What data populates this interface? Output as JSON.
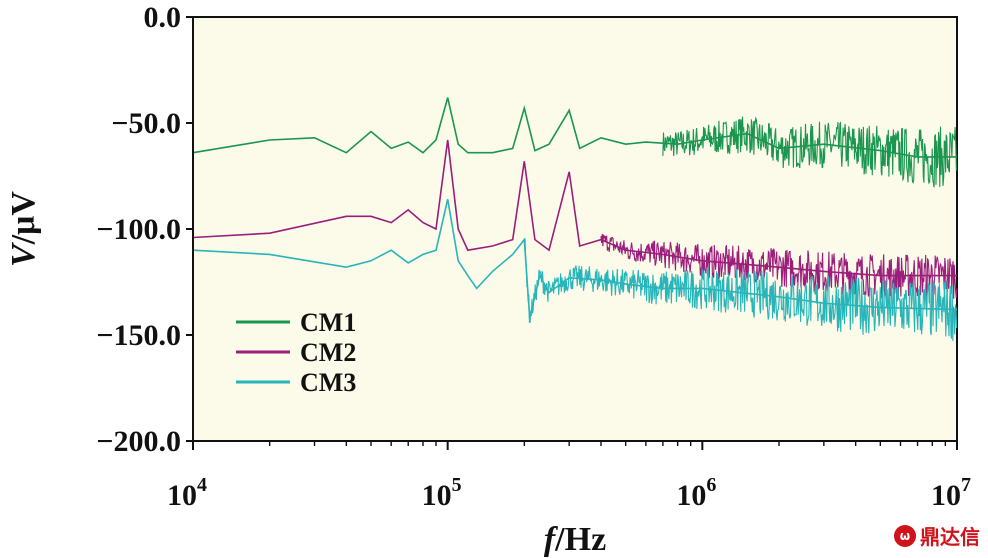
{
  "chart_data": {
    "type": "line",
    "xlabel_italic": "f",
    "xlabel_unit": "/Hz",
    "ylabel_italic": "V",
    "ylabel_unit": "/μV",
    "xscale": "log",
    "xlim": [
      10000,
      10000000
    ],
    "ylim": [
      -200,
      0
    ],
    "yticks": [
      {
        "value": 0,
        "label": "0.0"
      },
      {
        "value": -50,
        "label": "−50.0"
      },
      {
        "value": -100,
        "label": "−100.0"
      },
      {
        "value": -150,
        "label": "−150.0"
      },
      {
        "value": -200,
        "label": "−200.0"
      }
    ],
    "xticks": [
      {
        "value": 10000,
        "base": "10",
        "exp": "4"
      },
      {
        "value": 100000,
        "base": "10",
        "exp": "5"
      },
      {
        "value": 1000000,
        "base": "10",
        "exp": "6"
      },
      {
        "value": 10000000,
        "base": "10",
        "exp": "7"
      }
    ],
    "grid": false,
    "legend_position": "lower-left",
    "background": "#fcfae9",
    "series": [
      {
        "name": "CM1",
        "color": "#1a9650",
        "points": [
          [
            10000,
            -64
          ],
          [
            20000,
            -58
          ],
          [
            30000,
            -57
          ],
          [
            40000,
            -64
          ],
          [
            50000,
            -54
          ],
          [
            60000,
            -62
          ],
          [
            70000,
            -59
          ],
          [
            80000,
            -64
          ],
          [
            90000,
            -58
          ],
          [
            100000,
            -38
          ],
          [
            110000,
            -60
          ],
          [
            120000,
            -64
          ],
          [
            150000,
            -64
          ],
          [
            180000,
            -62
          ],
          [
            200000,
            -43
          ],
          [
            220000,
            -63
          ],
          [
            250000,
            -60
          ],
          [
            300000,
            -44
          ],
          [
            330000,
            -62
          ],
          [
            400000,
            -57
          ],
          [
            500000,
            -60
          ],
          [
            600000,
            -59
          ],
          [
            800000,
            -60
          ],
          [
            1000000,
            -58
          ],
          [
            1500000,
            -55
          ],
          [
            2000000,
            -62
          ],
          [
            3000000,
            -60
          ],
          [
            5000000,
            -63
          ],
          [
            7000000,
            -66
          ],
          [
            10000000,
            -66
          ]
        ],
        "noise": [
          [
            700000,
            12
          ],
          [
            1500000,
            18
          ],
          [
            3000000,
            22
          ],
          [
            10000000,
            30
          ]
        ]
      },
      {
        "name": "CM2",
        "color": "#9b1e7c",
        "points": [
          [
            10000,
            -104
          ],
          [
            20000,
            -102
          ],
          [
            40000,
            -94
          ],
          [
            50000,
            -94
          ],
          [
            60000,
            -97
          ],
          [
            70000,
            -91
          ],
          [
            80000,
            -97
          ],
          [
            90000,
            -100
          ],
          [
            100000,
            -58
          ],
          [
            110000,
            -100
          ],
          [
            120000,
            -110
          ],
          [
            150000,
            -108
          ],
          [
            180000,
            -105
          ],
          [
            200000,
            -68
          ],
          [
            220000,
            -105
          ],
          [
            250000,
            -110
          ],
          [
            300000,
            -73
          ],
          [
            330000,
            -108
          ],
          [
            400000,
            -105
          ],
          [
            500000,
            -110
          ],
          [
            700000,
            -112
          ],
          [
            1000000,
            -115
          ],
          [
            2000000,
            -118
          ],
          [
            3000000,
            -120
          ],
          [
            5000000,
            -122
          ],
          [
            10000000,
            -122
          ]
        ],
        "noise": [
          [
            400000,
            8
          ],
          [
            1000000,
            16
          ],
          [
            3000000,
            20
          ],
          [
            10000000,
            22
          ]
        ]
      },
      {
        "name": "CM3",
        "color": "#27b5ba",
        "points": [
          [
            10000,
            -110
          ],
          [
            20000,
            -112
          ],
          [
            40000,
            -118
          ],
          [
            50000,
            -115
          ],
          [
            60000,
            -110
          ],
          [
            70000,
            -116
          ],
          [
            80000,
            -112
          ],
          [
            90000,
            -110
          ],
          [
            100000,
            -86
          ],
          [
            110000,
            -115
          ],
          [
            120000,
            -122
          ],
          [
            130000,
            -128
          ],
          [
            150000,
            -120
          ],
          [
            180000,
            -112
          ],
          [
            200000,
            -105
          ],
          [
            210000,
            -142
          ],
          [
            230000,
            -122
          ],
          [
            250000,
            -130
          ],
          [
            300000,
            -123
          ],
          [
            400000,
            -124
          ],
          [
            500000,
            -126
          ],
          [
            700000,
            -128
          ],
          [
            1000000,
            -128
          ],
          [
            2000000,
            -132
          ],
          [
            3000000,
            -135
          ],
          [
            5000000,
            -137
          ],
          [
            10000000,
            -138
          ]
        ],
        "noise": [
          [
            200000,
            10
          ],
          [
            500000,
            14
          ],
          [
            1000000,
            20
          ],
          [
            3000000,
            26
          ],
          [
            10000000,
            30
          ]
        ]
      }
    ]
  },
  "watermark": {
    "logo": "ω",
    "text": "鼎达信"
  }
}
